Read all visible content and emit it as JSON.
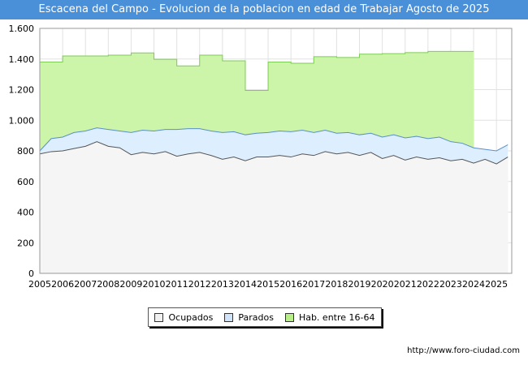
{
  "chart_data": {
    "type": "area",
    "title": "Escacena del Campo - Evolucion de la poblacion en edad de Trabajar Agosto de 2025",
    "xlabel": "",
    "ylabel": "",
    "ylim": [
      0,
      1600
    ],
    "xlim": [
      2005,
      2025.67
    ],
    "y_ticks": [
      0,
      200,
      400,
      600,
      800,
      1000,
      1200,
      1400,
      1600
    ],
    "y_tick_labels": [
      "0",
      "200",
      "400",
      "600",
      "800",
      "1.000",
      "1.200",
      "1.400",
      "1.600"
    ],
    "x_ticks": [
      2005,
      2006,
      2007,
      2008,
      2009,
      2010,
      2011,
      2012,
      2013,
      2014,
      2015,
      2016,
      2017,
      2018,
      2019,
      2020,
      2021,
      2022,
      2023,
      2024,
      2025
    ],
    "grid": true,
    "legend_position": "bottom",
    "series": [
      {
        "name": "Ocupados",
        "color": "#f5f5f5",
        "stroke": "#555555",
        "x": [
          2005,
          2005.5,
          2006,
          2006.5,
          2007,
          2007.5,
          2008,
          2008.5,
          2009,
          2009.5,
          2010,
          2010.5,
          2011,
          2011.5,
          2012,
          2012.5,
          2013,
          2013.5,
          2014,
          2014.5,
          2015,
          2015.5,
          2016,
          2016.5,
          2017,
          2017.5,
          2018,
          2018.5,
          2019,
          2019.5,
          2020,
          2020.5,
          2021,
          2021.5,
          2022,
          2022.5,
          2023,
          2023.5,
          2024,
          2024.5,
          2025,
          2025.5
        ],
        "values": [
          780,
          795,
          800,
          815,
          830,
          860,
          830,
          820,
          775,
          790,
          780,
          795,
          765,
          780,
          790,
          770,
          745,
          760,
          735,
          760,
          760,
          770,
          760,
          780,
          770,
          795,
          780,
          790,
          770,
          790,
          750,
          770,
          740,
          760,
          745,
          755,
          735,
          745,
          720,
          745,
          715,
          760
        ]
      },
      {
        "name": "Parados",
        "color": "#ddeeff",
        "stroke": "#5b8fc9",
        "x": [
          2005,
          2005.5,
          2006,
          2006.5,
          2007,
          2007.5,
          2008,
          2008.5,
          2009,
          2009.5,
          2010,
          2010.5,
          2011,
          2011.5,
          2012,
          2012.5,
          2013,
          2013.5,
          2014,
          2014.5,
          2015,
          2015.5,
          2016,
          2016.5,
          2017,
          2017.5,
          2018,
          2018.5,
          2019,
          2019.5,
          2020,
          2020.5,
          2021,
          2021.5,
          2022,
          2022.5,
          2023,
          2023.5,
          2024,
          2024.5,
          2025,
          2025.5
        ],
        "values": [
          800,
          880,
          890,
          920,
          930,
          950,
          940,
          930,
          920,
          935,
          930,
          940,
          940,
          945,
          945,
          930,
          920,
          925,
          905,
          915,
          920,
          930,
          925,
          935,
          920,
          935,
          915,
          920,
          905,
          915,
          890,
          905,
          885,
          895,
          880,
          890,
          860,
          850,
          820,
          810,
          800,
          840
        ]
      },
      {
        "name": "Hab. entre 16-64",
        "color": "#ccf5aa",
        "stroke": "#7dcc55",
        "x": [
          2005,
          2006,
          2007,
          2008,
          2009,
          2010,
          2011,
          2012,
          2013,
          2014,
          2015,
          2016,
          2017,
          2018,
          2019,
          2020,
          2021,
          2022,
          2023,
          2024
        ],
        "values": [
          1380,
          1420,
          1420,
          1425,
          1440,
          1398,
          1355,
          1425,
          1388,
          1195,
          1380,
          1372,
          1415,
          1410,
          1432,
          1435,
          1442,
          1450,
          1450,
          null
        ]
      }
    ]
  },
  "legend": {
    "items": [
      {
        "label": "Ocupados"
      },
      {
        "label": "Parados"
      },
      {
        "label": "Hab. entre 16-64"
      }
    ]
  },
  "footer": {
    "url": "http://www.foro-ciudad.com"
  }
}
